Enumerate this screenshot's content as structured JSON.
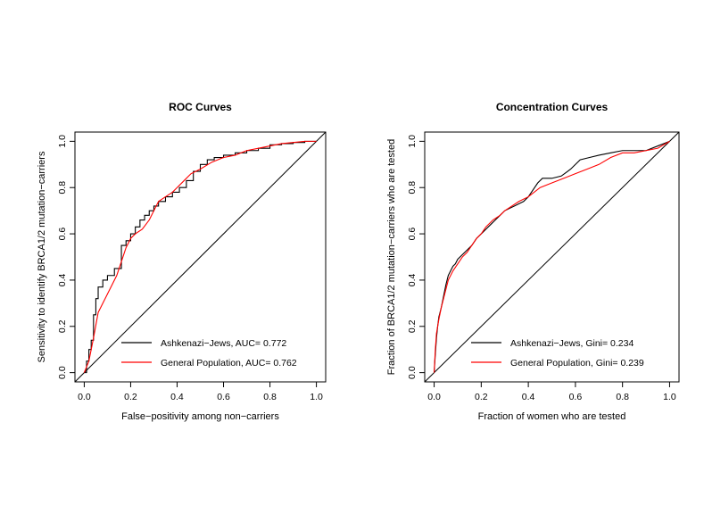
{
  "chart_data": [
    {
      "type": "line",
      "title": "ROC Curves",
      "xlabel": "False−positivity among non−carriers",
      "ylabel": "Sensitivity to identify BRCA1/2 mutation−carriers",
      "xlim": [
        0,
        1
      ],
      "ylim": [
        0,
        1
      ],
      "xticks": [
        "0.0",
        "0.2",
        "0.4",
        "0.6",
        "0.8",
        "1.0"
      ],
      "yticks": [
        "0.0",
        "0.2",
        "0.4",
        "0.6",
        "0.8",
        "1.0"
      ],
      "grid": false,
      "legend_position": "bottom-right",
      "reference_line": true,
      "series": [
        {
          "name": "Ashkenazi−Jews, AUC= 0.772",
          "color": "#000000",
          "x": [
            0,
            0.01,
            0.01,
            0.02,
            0.02,
            0.03,
            0.03,
            0.04,
            0.04,
            0.05,
            0.05,
            0.06,
            0.06,
            0.08,
            0.08,
            0.1,
            0.1,
            0.13,
            0.13,
            0.16,
            0.16,
            0.18,
            0.18,
            0.2,
            0.2,
            0.22,
            0.22,
            0.24,
            0.24,
            0.26,
            0.26,
            0.28,
            0.28,
            0.3,
            0.3,
            0.32,
            0.32,
            0.35,
            0.35,
            0.38,
            0.38,
            0.41,
            0.41,
            0.44,
            0.44,
            0.47,
            0.47,
            0.5,
            0.5,
            0.53,
            0.53,
            0.56,
            0.56,
            0.6,
            0.6,
            0.65,
            0.65,
            0.7,
            0.7,
            0.75,
            0.75,
            0.8,
            0.8,
            0.85,
            0.85,
            0.9,
            0.9,
            0.95,
            0.95,
            1.0
          ],
          "y": [
            0,
            0,
            0.05,
            0.05,
            0.1,
            0.1,
            0.14,
            0.14,
            0.25,
            0.25,
            0.32,
            0.32,
            0.37,
            0.37,
            0.4,
            0.4,
            0.42,
            0.42,
            0.45,
            0.45,
            0.55,
            0.55,
            0.57,
            0.57,
            0.6,
            0.6,
            0.63,
            0.63,
            0.66,
            0.66,
            0.68,
            0.68,
            0.7,
            0.7,
            0.72,
            0.72,
            0.74,
            0.74,
            0.76,
            0.76,
            0.78,
            0.78,
            0.8,
            0.8,
            0.83,
            0.83,
            0.87,
            0.87,
            0.9,
            0.9,
            0.92,
            0.92,
            0.93,
            0.93,
            0.94,
            0.94,
            0.95,
            0.95,
            0.96,
            0.96,
            0.97,
            0.97,
            0.985,
            0.985,
            0.99,
            0.99,
            0.995,
            0.995,
            1.0,
            1.0
          ]
        },
        {
          "name": "General Population, AUC= 0.762",
          "color": "#ff0000",
          "x": [
            0,
            0.02,
            0.04,
            0.06,
            0.08,
            0.1,
            0.12,
            0.14,
            0.16,
            0.18,
            0.2,
            0.22,
            0.25,
            0.28,
            0.3,
            0.32,
            0.35,
            0.38,
            0.4,
            0.43,
            0.46,
            0.5,
            0.55,
            0.6,
            0.65,
            0.7,
            0.75,
            0.8,
            0.85,
            0.9,
            0.95,
            1.0
          ],
          "y": [
            0,
            0.05,
            0.15,
            0.26,
            0.3,
            0.34,
            0.38,
            0.42,
            0.48,
            0.54,
            0.58,
            0.6,
            0.62,
            0.66,
            0.7,
            0.74,
            0.76,
            0.78,
            0.8,
            0.83,
            0.86,
            0.88,
            0.91,
            0.93,
            0.94,
            0.96,
            0.97,
            0.98,
            0.99,
            0.995,
            1.0,
            1.0
          ]
        }
      ]
    },
    {
      "type": "line",
      "title": "Concentration Curves",
      "xlabel": "Fraction of women who are tested",
      "ylabel": "Fraction of BRCA1/2 mutation−carriers who are tested",
      "xlim": [
        0,
        1
      ],
      "ylim": [
        0,
        1
      ],
      "xticks": [
        "0.0",
        "0.2",
        "0.4",
        "0.6",
        "0.8",
        "1.0"
      ],
      "yticks": [
        "0.0",
        "0.2",
        "0.4",
        "0.6",
        "0.8",
        "1.0"
      ],
      "grid": false,
      "legend_position": "bottom-right",
      "reference_line": true,
      "series": [
        {
          "name": "Ashkenazi−Jews, Gini= 0.234",
          "color": "#000000",
          "x": [
            0,
            0.005,
            0.01,
            0.015,
            0.02,
            0.03,
            0.04,
            0.05,
            0.06,
            0.07,
            0.08,
            0.09,
            0.1,
            0.12,
            0.14,
            0.16,
            0.18,
            0.2,
            0.22,
            0.24,
            0.26,
            0.28,
            0.3,
            0.32,
            0.34,
            0.36,
            0.38,
            0.4,
            0.42,
            0.44,
            0.46,
            0.5,
            0.54,
            0.58,
            0.62,
            0.66,
            0.7,
            0.75,
            0.8,
            0.85,
            0.9,
            0.95,
            1.0
          ],
          "y": [
            0,
            0.08,
            0.15,
            0.2,
            0.24,
            0.28,
            0.33,
            0.38,
            0.42,
            0.44,
            0.46,
            0.47,
            0.49,
            0.51,
            0.53,
            0.55,
            0.58,
            0.6,
            0.62,
            0.64,
            0.66,
            0.68,
            0.7,
            0.71,
            0.72,
            0.73,
            0.74,
            0.76,
            0.79,
            0.82,
            0.84,
            0.84,
            0.85,
            0.88,
            0.92,
            0.93,
            0.94,
            0.95,
            0.96,
            0.96,
            0.96,
            0.98,
            1.0
          ]
        },
        {
          "name": "General Population, Gini= 0.239",
          "color": "#ff0000",
          "x": [
            0,
            0.005,
            0.01,
            0.02,
            0.03,
            0.04,
            0.05,
            0.06,
            0.08,
            0.1,
            0.12,
            0.14,
            0.16,
            0.18,
            0.2,
            0.22,
            0.25,
            0.28,
            0.3,
            0.33,
            0.36,
            0.4,
            0.45,
            0.5,
            0.55,
            0.6,
            0.65,
            0.7,
            0.75,
            0.8,
            0.85,
            0.9,
            0.95,
            1.0
          ],
          "y": [
            0,
            0.1,
            0.17,
            0.23,
            0.28,
            0.32,
            0.36,
            0.4,
            0.44,
            0.47,
            0.5,
            0.52,
            0.55,
            0.58,
            0.6,
            0.63,
            0.66,
            0.68,
            0.7,
            0.72,
            0.74,
            0.76,
            0.8,
            0.82,
            0.84,
            0.86,
            0.88,
            0.9,
            0.93,
            0.95,
            0.95,
            0.96,
            0.97,
            1.0
          ]
        }
      ]
    }
  ]
}
